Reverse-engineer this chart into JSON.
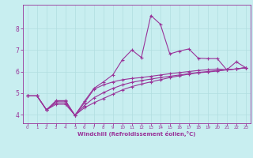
{
  "xlabel": "Windchill (Refroidissement éolien,°C)",
  "background_color": "#c8eef0",
  "line_color": "#993399",
  "grid_color": "#b0dde0",
  "xlim": [
    -0.5,
    23.5
  ],
  "ylim": [
    3.6,
    9.1
  ],
  "yticks": [
    4,
    5,
    6,
    7,
    8
  ],
  "xticks": [
    0,
    1,
    2,
    3,
    4,
    5,
    6,
    7,
    8,
    9,
    10,
    11,
    12,
    13,
    14,
    15,
    16,
    17,
    18,
    19,
    20,
    21,
    22,
    23
  ],
  "x_data": [
    0,
    1,
    2,
    3,
    4,
    5,
    6,
    7,
    8,
    9,
    10,
    11,
    12,
    13,
    14,
    15,
    16,
    17,
    18,
    19,
    20,
    21,
    22,
    23
  ],
  "line1_y": [
    4.87,
    4.87,
    4.22,
    4.65,
    4.65,
    3.97,
    4.62,
    5.22,
    5.52,
    5.85,
    6.55,
    7.0,
    6.65,
    8.6,
    8.2,
    6.82,
    6.95,
    7.05,
    6.62,
    6.6,
    6.6,
    6.08,
    6.45,
    6.18
  ],
  "line2_y": [
    4.87,
    4.87,
    4.22,
    4.62,
    4.62,
    3.97,
    4.55,
    5.18,
    5.38,
    5.52,
    5.62,
    5.68,
    5.72,
    5.78,
    5.84,
    5.9,
    5.95,
    6.0,
    6.05,
    6.08,
    6.12,
    6.08,
    6.12,
    6.18
  ],
  "line3_y": [
    4.87,
    4.87,
    4.22,
    4.55,
    4.55,
    3.97,
    4.42,
    4.78,
    5.02,
    5.22,
    5.38,
    5.5,
    5.58,
    5.65,
    5.72,
    5.78,
    5.84,
    5.9,
    5.96,
    6.0,
    6.05,
    6.08,
    6.12,
    6.18
  ],
  "line4_y": [
    4.87,
    4.87,
    4.22,
    4.48,
    4.48,
    3.97,
    4.32,
    4.55,
    4.75,
    4.95,
    5.15,
    5.3,
    5.42,
    5.52,
    5.62,
    5.72,
    5.8,
    5.88,
    5.94,
    5.98,
    6.02,
    6.08,
    6.12,
    6.18
  ]
}
